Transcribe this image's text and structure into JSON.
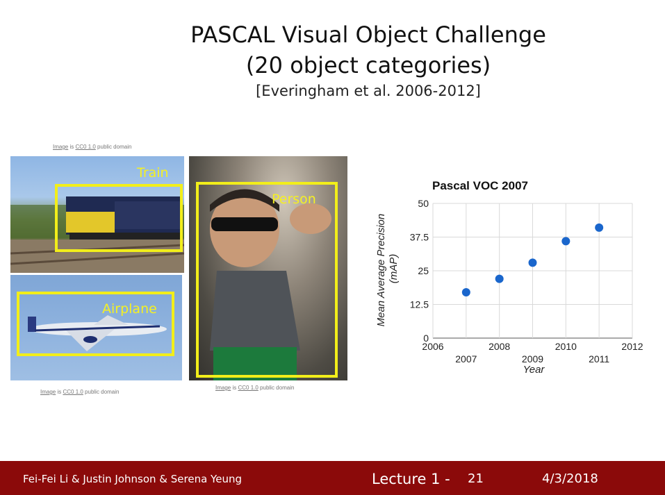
{
  "title": {
    "line1": "PASCAL Visual Object Challenge",
    "line2": "(20 object categories)",
    "citation": "[Everingham et al. 2006-2012]"
  },
  "credits": {
    "prefix": "Image",
    "is": " is ",
    "license": "CC0 1.0",
    "suffix": " public domain"
  },
  "labels": {
    "train": "Train",
    "airplane": "Airplane",
    "person": "Person"
  },
  "chart_data": {
    "type": "scatter",
    "title": "Pascal VOC 2007",
    "xlabel": "Year",
    "ylabel": "Mean Average Precision (mAP)",
    "xlim": [
      2006,
      2012
    ],
    "ylim": [
      0,
      50
    ],
    "xticks_upper": [
      "2006",
      "2008",
      "2010",
      "2012"
    ],
    "xticks_lower": [
      "2007",
      "2009",
      "2011"
    ],
    "yticks": [
      "0",
      "12.5",
      "25",
      "37.5",
      "50"
    ],
    "grid": true,
    "point_color": "#1a66cc",
    "x": [
      2007,
      2008,
      2009,
      2010,
      2011
    ],
    "y": [
      17,
      22,
      28,
      36,
      41
    ]
  },
  "footer": {
    "names": "Fei-Fei Li & Justin Johnson & Serena Yeung",
    "lecture": "Lecture 1 -",
    "page": "21",
    "date": "4/3/2018"
  }
}
